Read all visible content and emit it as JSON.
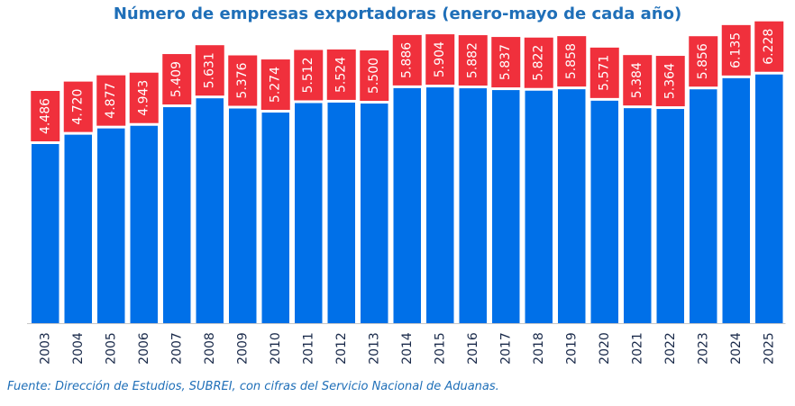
{
  "chart_data": {
    "type": "bar",
    "title": "Número de empresas exportadoras (enero-mayo de cada año)",
    "xlabel": "",
    "ylabel": "",
    "categories": [
      "2003",
      "2004",
      "2005",
      "2006",
      "2007",
      "2008",
      "2009",
      "2010",
      "2011",
      "2012",
      "2013",
      "2014",
      "2015",
      "2016",
      "2017",
      "2018",
      "2019",
      "2020",
      "2021",
      "2022",
      "2023",
      "2024",
      "2025"
    ],
    "values": [
      4486,
      4720,
      4877,
      4943,
      5409,
      5631,
      5376,
      5274,
      5512,
      5524,
      5500,
      5886,
      5904,
      5882,
      5837,
      5822,
      5858,
      5571,
      5384,
      5364,
      5856,
      6135,
      6228
    ],
    "data_labels": [
      "4.486",
      "4.720",
      "4.877",
      "4.943",
      "5.409",
      "5.631",
      "5.376",
      "5.274",
      "5.512",
      "5.524",
      "5.500",
      "5.886",
      "5.904",
      "5.882",
      "5.837",
      "5.822",
      "5.858",
      "5.571",
      "5.384",
      "5.364",
      "5.856",
      "6.135",
      "6.228"
    ],
    "ylim": [
      0,
      7000
    ],
    "grid": false,
    "legend": "none",
    "colors": {
      "bar": "#0070e8",
      "label_box": "#f0303c",
      "label_text": "#ffffff",
      "title": "#1f6fb8"
    }
  },
  "source_note": "Fuente: Dirección de Estudios, SUBREI, con cifras del Servicio Nacional de Aduanas."
}
